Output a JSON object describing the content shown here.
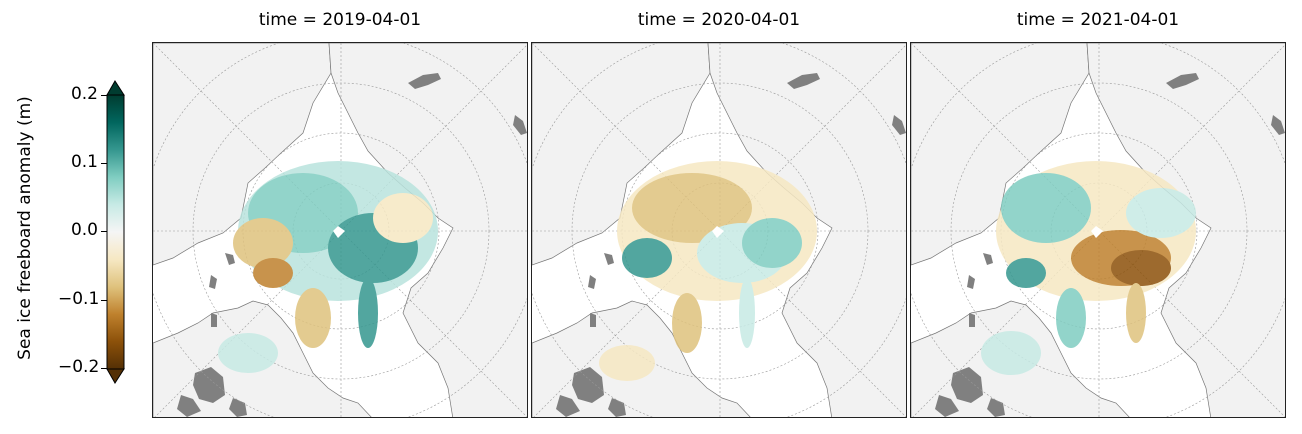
{
  "colorbar": {
    "label": "Sea ice freeboard anomaly (m)",
    "ticks": [
      "0.2",
      "0.1",
      "0.0",
      "−0.1",
      "−0.2"
    ],
    "tick_values": [
      0.2,
      0.1,
      0.0,
      -0.1,
      -0.2
    ],
    "vmin": -0.2,
    "vmax": 0.2,
    "extend": "both",
    "colormap": "BrBG",
    "colors": [
      "#543005",
      "#8c510a",
      "#bf812d",
      "#dfc27d",
      "#f6e8c3",
      "#f5f5f5",
      "#c7eae5",
      "#80cdc1",
      "#35978f",
      "#01665e",
      "#003c30"
    ]
  },
  "panels": [
    {
      "title": "time = 2019-04-01"
    },
    {
      "title": "time = 2020-04-01"
    },
    {
      "title": "time = 2021-04-01"
    }
  ],
  "map": {
    "projection": "north-polar-stereographic",
    "land_color": "#f2f2f2",
    "lake_color": "#808080",
    "gridlines": true
  }
}
